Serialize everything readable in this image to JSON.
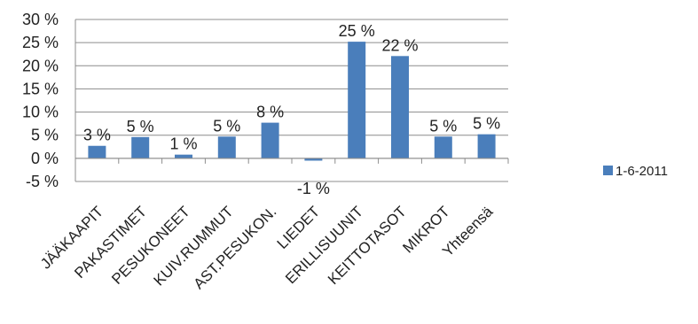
{
  "chart_data": {
    "type": "bar",
    "title": "",
    "xlabel": "",
    "ylabel": "",
    "categories": [
      "JÄÄKAAPIT",
      "PAKASTIMET",
      "PESUKONEET",
      "KUIV.RUMMUT",
      "AST.PESUKON.",
      "LIEDET",
      "ERILLISUUNIT",
      "KEITTOTASOT",
      "MIKROT",
      "Yhteensä"
    ],
    "series": [
      {
        "name": "1-6-2011",
        "values": [
          3,
          5,
          1,
          5,
          8,
          -1,
          25,
          22,
          5,
          5
        ],
        "plotted_values": [
          2.7,
          4.6,
          0.8,
          4.7,
          7.7,
          -0.5,
          25.2,
          22.1,
          4.7,
          5.2
        ],
        "data_labels": [
          "3 %",
          "5 %",
          "1 %",
          "5 %",
          "8 %",
          "-1 %",
          "25 %",
          "22 %",
          "5 %",
          "5 %"
        ],
        "color": "#4a7ebb"
      }
    ],
    "yticks": [
      "-5 %",
      "0 %",
      "5 %",
      "10 %",
      "15 %",
      "20 %",
      "25 %",
      "30 %"
    ],
    "ylim": [
      -5,
      30
    ],
    "grid": true,
    "legend_position": "right"
  }
}
